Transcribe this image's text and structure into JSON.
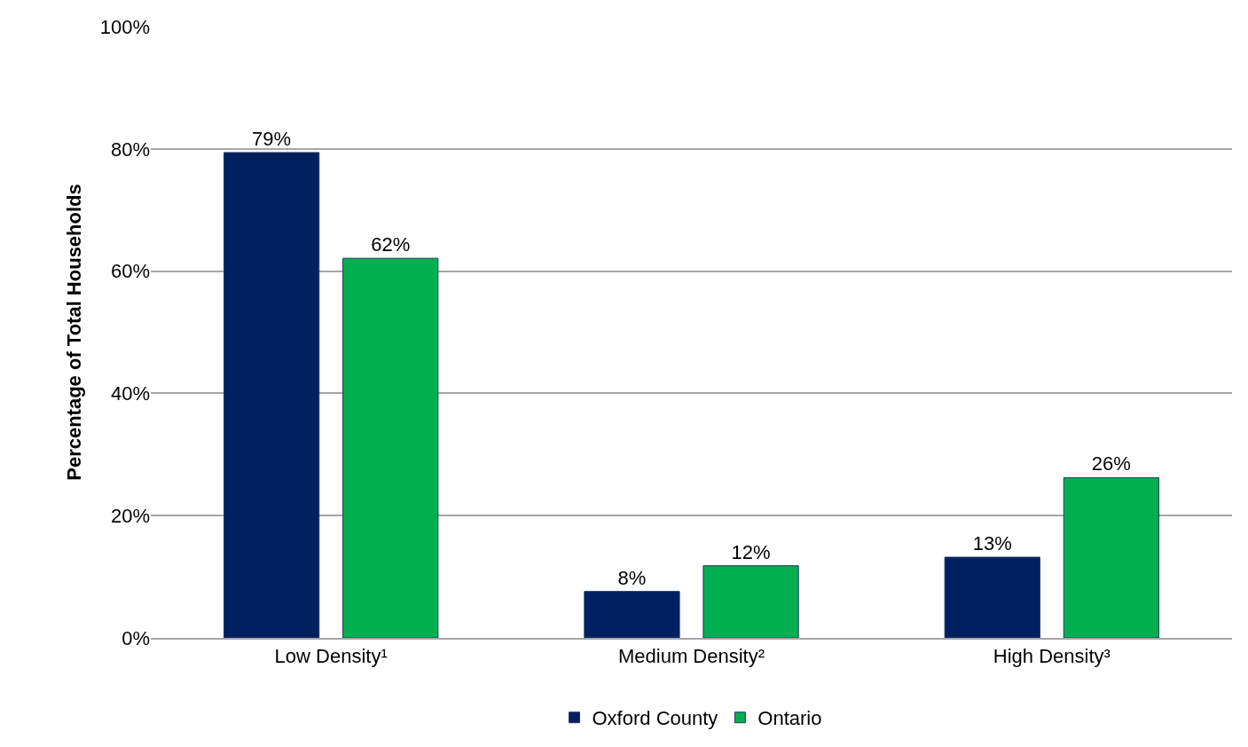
{
  "chart_data": {
    "type": "bar",
    "ylabel": "Percentage of Total Households",
    "categories": [
      "Low Density¹",
      "Medium Density²",
      "High Density³"
    ],
    "series": [
      {
        "name": "Oxford County",
        "color": "#002060",
        "values": [
          79.4,
          7.6,
          13.2
        ],
        "value_labels": [
          "79%",
          "8%",
          "13%"
        ]
      },
      {
        "name": "Ontario",
        "color": "#00b050",
        "values": [
          62.1,
          11.8,
          26.2
        ],
        "value_labels": [
          "62%",
          "12%",
          "26%"
        ]
      }
    ],
    "ylim": [
      0,
      100
    ],
    "yticks": [
      {
        "value": 0,
        "label": "0%"
      },
      {
        "value": 20,
        "label": "20%"
      },
      {
        "value": 40,
        "label": "40%"
      },
      {
        "value": 60,
        "label": "60%"
      },
      {
        "value": 80,
        "label": "80%"
      },
      {
        "value": 100,
        "label": "100%"
      }
    ],
    "grid": "y",
    "legend": "bottom"
  }
}
